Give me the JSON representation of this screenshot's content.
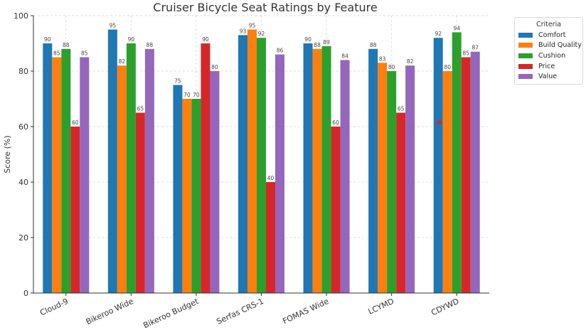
{
  "chart_data": {
    "type": "bar",
    "title": "Cruiser Bicycle Seat Ratings by Feature",
    "xlabel": "",
    "ylabel": "Score (%)",
    "ylim": [
      0,
      100
    ],
    "yticks": [
      0,
      20,
      40,
      60,
      80,
      100
    ],
    "grid": true,
    "legend_title": "Criteria",
    "legend_position": "outside upper right",
    "categories": [
      "Cloud-9",
      "Bikeroo Wide",
      "Bikeroo Budget",
      "Serfas CRS-1",
      "FOMAS Wide",
      "LCYMD",
      "CDYWD"
    ],
    "series": [
      {
        "name": "Comfort",
        "color": "#1f77b4",
        "values": [
          90,
          95,
          75,
          93,
          90,
          88,
          92
        ]
      },
      {
        "name": "Build Quality",
        "color": "#ff7f0e",
        "values": [
          85,
          82,
          70,
          95,
          88,
          83,
          80
        ]
      },
      {
        "name": "Cushion",
        "color": "#2ca02c",
        "values": [
          88,
          90,
          70,
          92,
          89,
          80,
          94
        ]
      },
      {
        "name": "Price",
        "color": "#d62728",
        "values": [
          60,
          65,
          90,
          40,
          60,
          65,
          85
        ]
      },
      {
        "name": "Value",
        "color": "#9467bd",
        "values": [
          85,
          88,
          80,
          86,
          84,
          82,
          87
        ]
      }
    ],
    "annotations": [
      {
        "type": "red-dot",
        "category": "CDYWD",
        "y": 61.5
      }
    ]
  }
}
